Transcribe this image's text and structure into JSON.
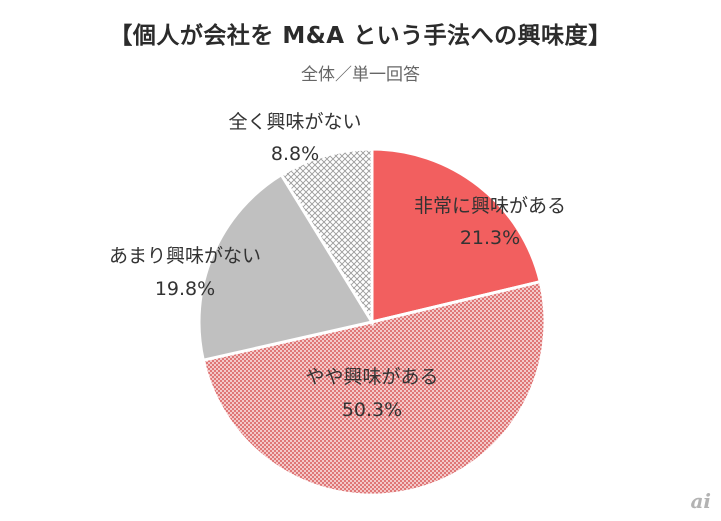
{
  "chart_data": {
    "type": "pie",
    "title": "【個人が会社を M&A という手法への興味度】",
    "subtitle": "全体／単一回答",
    "slices": [
      {
        "label": "非常に興味がある",
        "value": 21.3,
        "value_label": "21.3%",
        "color": "#f25f5f",
        "pattern": "solid"
      },
      {
        "label": "やや興味がある",
        "value": 50.3,
        "value_label": "50.3%",
        "color": "#e07b7b",
        "pattern": "dots"
      },
      {
        "label": "あまり興味がない",
        "value": 19.8,
        "value_label": "19.8%",
        "color": "#c0c0c0",
        "pattern": "solid"
      },
      {
        "label": "全く興味がない",
        "value": 8.8,
        "value_label": "8.8%",
        "color": "#d9d9d9",
        "pattern": "crosshatch"
      }
    ],
    "start_angle": "top",
    "direction": "clockwise"
  },
  "watermark": "ai"
}
